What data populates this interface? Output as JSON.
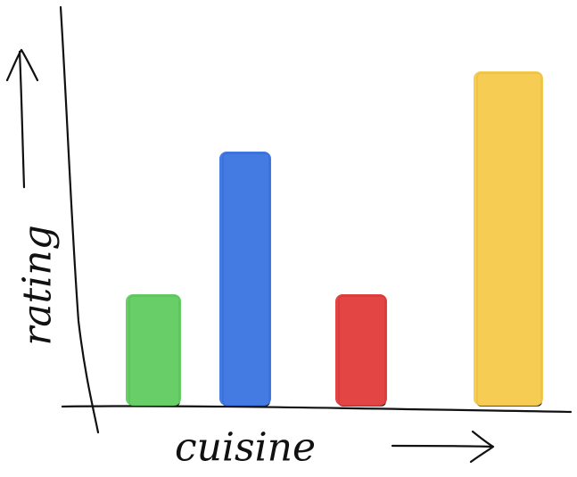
{
  "chart_data": {
    "type": "bar",
    "x_label": "cuisine",
    "y_label": "rating",
    "categories": [
      null,
      null,
      null,
      null
    ],
    "values": [
      125,
      285,
      125,
      375
    ],
    "colors": [
      "#5fcb60",
      "#3a74e0",
      "#e23b3b",
      "#f5c94a"
    ]
  }
}
